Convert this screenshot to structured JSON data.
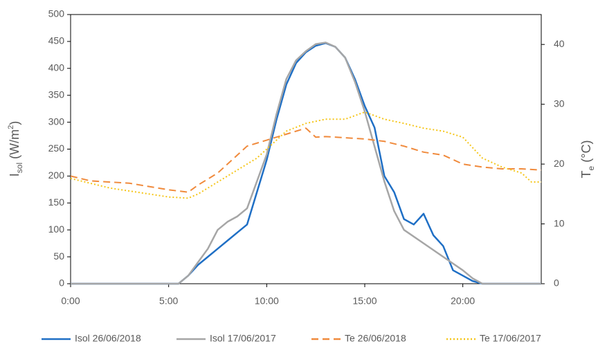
{
  "chart_data": {
    "type": "line",
    "y_label": {
      "main": "I",
      "sub": "sol",
      "rest": " (W/m",
      "sup": "2",
      "end": ")"
    },
    "y2_label": {
      "main": "T",
      "sub": "e",
      "rest": " (°C)"
    },
    "xlim": [
      0,
      24
    ],
    "xticks": [
      {
        "value": 0,
        "label": "0:00"
      },
      {
        "value": 5,
        "label": "5:00"
      },
      {
        "value": 10,
        "label": "10:00"
      },
      {
        "value": 15,
        "label": "15:00"
      },
      {
        "value": 20,
        "label": "20:00"
      }
    ],
    "ylim": [
      0,
      500
    ],
    "yticks": [
      0,
      50,
      100,
      150,
      200,
      250,
      300,
      350,
      400,
      450,
      500
    ],
    "y2lim": [
      0,
      45
    ],
    "y2ticks": [
      0,
      10,
      20,
      30,
      40
    ],
    "series": [
      {
        "name": "Isol 26/06/2018",
        "color": "#1f6fc5",
        "dash": "solid",
        "x": [
          0,
          5.5,
          6,
          6.5,
          7,
          7.5,
          8,
          8.5,
          9,
          9.5,
          10,
          10.5,
          11,
          11.5,
          12,
          12.5,
          13,
          13.5,
          14,
          14.5,
          15,
          15.5,
          16,
          16.5,
          17,
          17.5,
          18,
          18.5,
          19,
          19.5,
          20,
          20.5,
          21,
          24
        ],
        "values": [
          0,
          0,
          15,
          35,
          50,
          65,
          80,
          95,
          110,
          170,
          230,
          305,
          370,
          410,
          430,
          442,
          447,
          440,
          420,
          380,
          330,
          290,
          200,
          170,
          120,
          110,
          130,
          90,
          70,
          25,
          15,
          5,
          0,
          0
        ]
      },
      {
        "name": "Isol 17/06/2017",
        "color": "#a6a6a6",
        "dash": "solid",
        "x": [
          0,
          5.5,
          6,
          6.5,
          7,
          7.5,
          8,
          8.5,
          9,
          9.5,
          10,
          10.5,
          11,
          11.5,
          12,
          12.5,
          13,
          13.5,
          14,
          14.5,
          15,
          15.5,
          16,
          16.5,
          17,
          18,
          19,
          20,
          20.5,
          21,
          24
        ],
        "values": [
          0,
          0,
          15,
          40,
          65,
          100,
          115,
          125,
          140,
          190,
          240,
          315,
          380,
          415,
          432,
          445,
          448,
          440,
          420,
          375,
          320,
          255,
          190,
          135,
          100,
          75,
          50,
          25,
          10,
          0,
          0
        ]
      },
      {
        "name": "Te 26/06/2018",
        "color": "#f08a3c",
        "dash": "10 6",
        "axis": "y2",
        "x": [
          0,
          1,
          3,
          5,
          6,
          6.5,
          7.5,
          8.5,
          9,
          10,
          11,
          12,
          12.5,
          13,
          14,
          15,
          16,
          17,
          18,
          19,
          20,
          21,
          22,
          23,
          24
        ],
        "values": [
          18,
          17.2,
          16.8,
          15.7,
          15.3,
          16.5,
          18.5,
          21.5,
          23,
          24,
          25,
          26,
          24.5,
          24.6,
          24.4,
          24.2,
          23.8,
          23,
          22,
          21.5,
          20,
          19.5,
          19.2,
          19.2,
          19
        ]
      },
      {
        "name": "Te 17/06/2017",
        "color": "#f5c518",
        "dash": "2 3",
        "axis": "y2",
        "x": [
          0,
          1,
          2,
          4,
          5,
          6,
          6.5,
          7.5,
          8.5,
          9.5,
          10,
          11,
          12,
          13,
          14,
          15,
          16,
          17,
          18,
          19,
          20,
          21,
          22,
          23,
          23.5,
          24
        ],
        "values": [
          17.6,
          16.8,
          16,
          15,
          14.5,
          14.3,
          15,
          17,
          19,
          21,
          22.5,
          25.5,
          26.8,
          27.5,
          27.5,
          28.7,
          27.5,
          26.8,
          26,
          25.5,
          24.5,
          21,
          19.5,
          18.5,
          17,
          17
        ]
      }
    ]
  }
}
